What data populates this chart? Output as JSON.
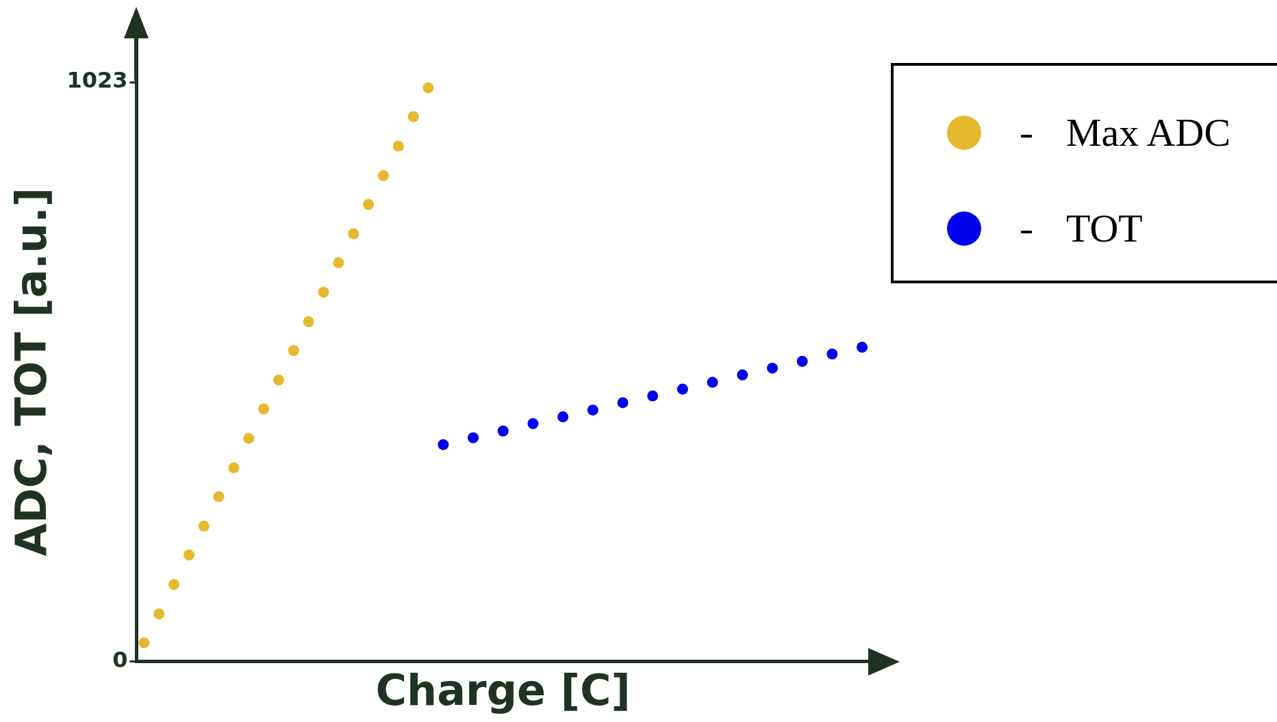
{
  "chart_data": {
    "type": "scatter",
    "xlabel": "Charge [C]",
    "ylabel": "ADC, TOT [a.u.]",
    "categories": [
      null,
      null,
      null,
      null,
      null,
      null,
      null,
      null,
      null,
      null,
      null,
      null,
      null,
      null,
      null,
      null,
      null,
      null,
      null,
      null,
      null,
      null,
      null,
      null,
      null,
      null,
      null,
      null,
      null,
      null,
      null,
      null,
      null,
      null,
      null,
      null,
      null,
      null,
      null,
      null,
      null,
      null,
      null,
      null,
      null,
      null,
      null,
      null,
      null
    ],
    "ylim": [
      0,
      1023
    ],
    "yticks": [
      0,
      1023
    ],
    "tick_labels": "y",
    "grid": false,
    "legend": "top right",
    "marker": "circle",
    "series": [
      {
        "name": "Max ADC",
        "color": "#e6b82e",
        "values": [
          33,
          84,
          136,
          188,
          239,
          291,
          342,
          394,
          446,
          497,
          549,
          600,
          652,
          704,
          755,
          807,
          858,
          910,
          962,
          1013,
          null,
          null,
          null,
          null,
          null,
          null,
          null,
          null,
          null,
          null,
          null,
          null,
          null,
          null,
          null,
          null,
          null,
          null,
          null,
          null,
          null,
          null,
          null,
          null,
          null,
          null,
          null,
          null,
          null
        ]
      },
      {
        "name": "TOT",
        "color": "#0000ee",
        "values": [
          null,
          null,
          null,
          null,
          null,
          null,
          null,
          null,
          null,
          null,
          null,
          null,
          null,
          null,
          null,
          null,
          null,
          null,
          null,
          null,
          383,
          null,
          395,
          null,
          407,
          null,
          420,
          null,
          432,
          null,
          444,
          null,
          457,
          null,
          469,
          null,
          481,
          null,
          493,
          null,
          506,
          null,
          518,
          null,
          530,
          null,
          543,
          null,
          555
        ]
      }
    ]
  }
}
